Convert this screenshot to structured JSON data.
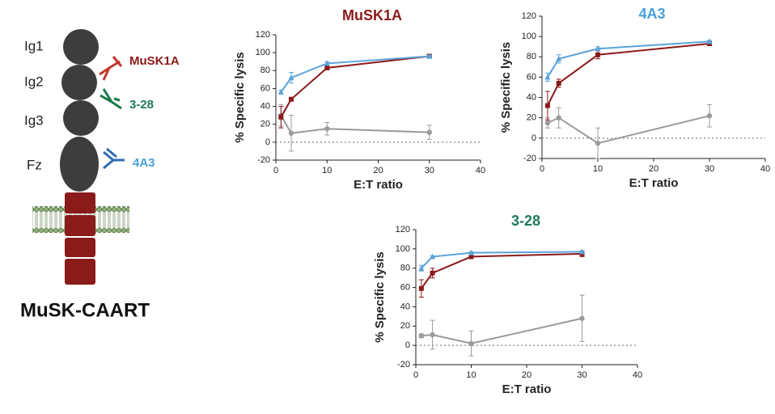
{
  "diagram": {
    "domains": [
      "Ig1",
      "Ig2",
      "Ig3",
      "Fz"
    ],
    "antibodies": [
      "MuSK1A",
      "3-28",
      "4A3"
    ],
    "construct": "MuSK-CAART"
  },
  "chart_data": [
    {
      "type": "line",
      "title": "MuSK1A",
      "title_color": "#8b1a1a",
      "xlabel": "E:T ratio",
      "ylabel": "% Specific lysis",
      "x": [
        1,
        3,
        10,
        30
      ],
      "xlim": [
        0,
        40
      ],
      "xticks": [
        0,
        10,
        20,
        30,
        40
      ],
      "ylim": [
        -20,
        120
      ],
      "yticks": [
        -20,
        0,
        20,
        40,
        60,
        80,
        100,
        120
      ],
      "reference_line": 0,
      "series": [
        {
          "color": "#5ba3d9",
          "marker": "triangle",
          "values": [
            56,
            72,
            88,
            96
          ],
          "errors": [
            2,
            6,
            2,
            1
          ]
        },
        {
          "color": "#8b1a1a",
          "marker": "square",
          "values": [
            28,
            48,
            83,
            96
          ],
          "errors": [
            12,
            2,
            2,
            2
          ]
        },
        {
          "color": "#9a9a9a",
          "marker": "circle",
          "values": [
            30,
            10,
            15,
            11
          ],
          "errors": [
            12,
            20,
            7,
            8
          ]
        }
      ]
    },
    {
      "type": "line",
      "title": "4A3",
      "title_color": "#4a9fd8",
      "xlabel": "E:T ratio",
      "ylabel": "% Specific lysis",
      "x": [
        1,
        3,
        10,
        30
      ],
      "xlim": [
        0,
        40
      ],
      "xticks": [
        0,
        10,
        20,
        30,
        40
      ],
      "ylim": [
        -20,
        120
      ],
      "yticks": [
        -20,
        0,
        20,
        40,
        60,
        80,
        100,
        120
      ],
      "reference_line": 0,
      "series": [
        {
          "color": "#5ba3d9",
          "marker": "triangle",
          "values": [
            60,
            78,
            88,
            95
          ],
          "errors": [
            4,
            4,
            2,
            1
          ]
        },
        {
          "color": "#8b1a1a",
          "marker": "square",
          "values": [
            32,
            54,
            82,
            93
          ],
          "errors": [
            14,
            4,
            4,
            2
          ]
        },
        {
          "color": "#9a9a9a",
          "marker": "circle",
          "values": [
            15,
            20,
            -5,
            22
          ],
          "errors": [
            5,
            10,
            15,
            11
          ]
        }
      ]
    },
    {
      "type": "line",
      "title": "3-28",
      "title_color": "#1e7a5a",
      "xlabel": "E:T ratio",
      "ylabel": "% Specific lysis",
      "x": [
        1,
        3,
        10,
        30
      ],
      "xlim": [
        0,
        40
      ],
      "xticks": [
        0,
        10,
        20,
        30,
        40
      ],
      "ylim": [
        -20,
        120
      ],
      "yticks": [
        -20,
        0,
        20,
        40,
        60,
        80,
        100,
        120
      ],
      "reference_line": 0,
      "series": [
        {
          "color": "#5ba3d9",
          "marker": "triangle",
          "values": [
            80,
            92,
            96,
            97
          ],
          "errors": [
            3,
            1,
            1,
            1
          ]
        },
        {
          "color": "#8b1a1a",
          "marker": "square",
          "values": [
            59,
            75,
            92,
            95
          ],
          "errors": [
            9,
            5,
            2,
            3
          ]
        },
        {
          "color": "#9a9a9a",
          "marker": "circle",
          "values": [
            10,
            11,
            2,
            28
          ],
          "errors": [
            2,
            15,
            13,
            24
          ]
        }
      ]
    }
  ]
}
